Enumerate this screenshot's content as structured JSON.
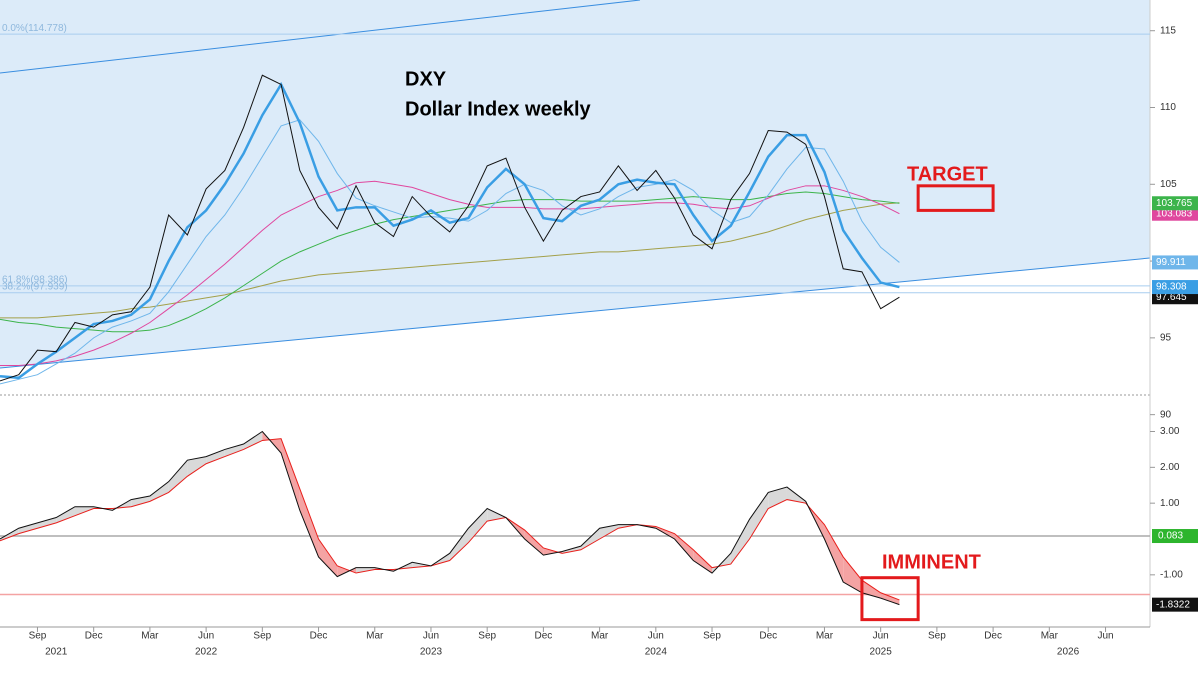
{
  "chart_data": [
    {
      "type": "line",
      "title": "DXY",
      "subtitle": "Dollar Index weekly",
      "x": [
        "2021-07",
        "2021-08",
        "2021-09",
        "2021-10",
        "2021-11",
        "2021-12",
        "2022-01",
        "2022-02",
        "2022-03",
        "2022-04",
        "2022-05",
        "2022-06",
        "2022-07",
        "2022-08",
        "2022-09",
        "2022-10",
        "2022-11",
        "2022-12",
        "2023-01",
        "2023-02",
        "2023-03",
        "2023-04",
        "2023-05",
        "2023-06",
        "2023-07",
        "2023-08",
        "2023-09",
        "2023-10",
        "2023-11",
        "2023-12",
        "2024-01",
        "2024-02",
        "2024-03",
        "2024-04",
        "2024-05",
        "2024-06",
        "2024-07",
        "2024-08",
        "2024-09",
        "2024-10",
        "2024-11",
        "2024-12",
        "2025-01",
        "2025-02",
        "2025-03",
        "2025-04",
        "2025-05",
        "2025-06",
        "2025-07"
      ],
      "xlim": [
        "2021-07",
        "2026-08"
      ],
      "ylim": [
        89,
        117
      ],
      "yticks": [
        90,
        95,
        100,
        105,
        110,
        115
      ],
      "series": [
        {
          "color": "#111111",
          "width": 1,
          "end_label": true,
          "values": [
            92.2,
            92.6,
            94.2,
            94.1,
            96.0,
            95.7,
            96.5,
            96.7,
            98.3,
            103.0,
            101.7,
            104.7,
            105.9,
            108.7,
            112.1,
            111.5,
            105.9,
            103.5,
            102.1,
            104.9,
            102.5,
            101.6,
            104.2,
            102.9,
            101.9,
            103.6,
            106.2,
            106.7,
            103.5,
            101.3,
            103.3,
            104.2,
            104.5,
            106.2,
            104.6,
            105.9,
            104.1,
            101.7,
            100.8,
            104.0,
            105.7,
            108.5,
            108.4,
            107.6,
            104.2,
            99.5,
            99.3,
            96.9,
            97.645
          ]
        },
        {
          "color": "#3a9ee4",
          "width": 2.5,
          "end_label": true,
          "values": [
            92.5,
            92.4,
            93.3,
            94.1,
            95.0,
            95.9,
            96.1,
            96.5,
            97.5,
            100.0,
            102.2,
            103.3,
            105.0,
            107.0,
            109.5,
            111.5,
            109.0,
            105.5,
            103.3,
            103.5,
            103.5,
            102.3,
            102.7,
            103.3,
            102.5,
            102.8,
            104.8,
            106.0,
            105.0,
            102.8,
            102.6,
            103.6,
            104.0,
            105.0,
            105.3,
            105.1,
            105.0,
            103.0,
            101.3,
            102.3,
            104.5,
            106.8,
            108.2,
            108.2,
            105.8,
            102.0,
            100.2,
            98.6,
            98.308
          ]
        },
        {
          "color": "#6fb6ea",
          "width": 1,
          "end_label": true,
          "values": [
            92.0,
            92.3,
            92.6,
            93.3,
            94.0,
            95.0,
            95.7,
            96.1,
            96.6,
            98.0,
            99.8,
            101.6,
            103.0,
            104.8,
            106.8,
            108.8,
            109.2,
            107.8,
            105.7,
            104.1,
            103.6,
            103.2,
            102.8,
            102.9,
            102.8,
            102.6,
            103.3,
            104.4,
            105.0,
            104.6,
            103.6,
            103.0,
            103.4,
            104.2,
            104.8,
            105.0,
            105.3,
            104.6,
            103.3,
            102.5,
            102.9,
            104.3,
            106.0,
            107.4,
            107.3,
            105.2,
            102.6,
            100.9,
            99.911
          ]
        },
        {
          "color": "#e0479e",
          "width": 1,
          "end_label": true,
          "values": [
            93.2,
            93.2,
            93.3,
            93.5,
            93.8,
            94.2,
            94.7,
            95.3,
            96.0,
            96.9,
            97.8,
            98.8,
            99.8,
            100.9,
            102.0,
            103.0,
            103.6,
            104.2,
            104.6,
            105.1,
            105.2,
            105.0,
            104.8,
            104.4,
            104.0,
            103.7,
            103.5,
            103.5,
            103.5,
            103.4,
            103.4,
            103.4,
            103.5,
            103.6,
            103.7,
            103.8,
            103.8,
            103.7,
            103.5,
            103.4,
            103.6,
            104.1,
            104.6,
            104.9,
            104.9,
            104.6,
            104.2,
            103.7,
            103.083
          ]
        },
        {
          "color": "#3cb44b",
          "width": 1,
          "end_label": true,
          "values": [
            96.2,
            96.0,
            95.9,
            95.7,
            95.6,
            95.5,
            95.4,
            95.4,
            95.5,
            95.8,
            96.3,
            96.9,
            97.6,
            98.4,
            99.2,
            100.0,
            100.6,
            101.1,
            101.6,
            102.0,
            102.4,
            102.7,
            102.9,
            103.1,
            103.3,
            103.5,
            103.7,
            103.9,
            104.0,
            104.0,
            104.0,
            103.9,
            103.9,
            103.9,
            103.9,
            104.0,
            104.1,
            104.2,
            104.1,
            104.0,
            104.0,
            104.2,
            104.4,
            104.5,
            104.4,
            104.2,
            104.0,
            103.9,
            103.765
          ]
        },
        {
          "color": "#a3a04a",
          "width": 1,
          "end_label": false,
          "values": [
            96.3,
            96.3,
            96.3,
            96.4,
            96.5,
            96.6,
            96.7,
            96.9,
            97.0,
            97.2,
            97.4,
            97.6,
            97.8,
            98.1,
            98.4,
            98.7,
            98.9,
            99.1,
            99.2,
            99.3,
            99.4,
            99.5,
            99.6,
            99.7,
            99.8,
            99.9,
            100.0,
            100.1,
            100.2,
            100.3,
            100.4,
            100.5,
            100.6,
            100.6,
            100.7,
            100.8,
            100.9,
            101.0,
            101.1,
            101.3,
            101.6,
            101.9,
            102.3,
            102.7,
            103.0,
            103.3,
            103.5,
            103.7,
            103.8
          ]
        }
      ],
      "hlines": [
        {
          "value": 114.778,
          "label": "0.0%(114.778)"
        },
        {
          "value": 98.386,
          "label": "61.8%(98.386)"
        },
        {
          "value": 97.939,
          "label": "38.2%(97.939)"
        }
      ],
      "annotation": "TARGET",
      "box": {
        "x": [
          "2025-08",
          "2025-12"
        ],
        "y": [
          103.3,
          104.9
        ]
      },
      "box_color": "#e31a1c"
    },
    {
      "type": "line",
      "x": [
        "2021-07",
        "2021-08",
        "2021-09",
        "2021-10",
        "2021-11",
        "2021-12",
        "2022-01",
        "2022-02",
        "2022-03",
        "2022-04",
        "2022-05",
        "2022-06",
        "2022-07",
        "2022-08",
        "2022-09",
        "2022-10",
        "2022-11",
        "2022-12",
        "2023-01",
        "2023-02",
        "2023-03",
        "2023-04",
        "2023-05",
        "2023-06",
        "2023-07",
        "2023-08",
        "2023-09",
        "2023-10",
        "2023-11",
        "2023-12",
        "2024-01",
        "2024-02",
        "2024-03",
        "2024-04",
        "2024-05",
        "2024-06",
        "2024-07",
        "2024-08",
        "2024-09",
        "2024-10",
        "2024-11",
        "2024-12",
        "2025-01",
        "2025-02",
        "2025-03",
        "2025-04",
        "2025-05",
        "2025-06",
        "2025-07"
      ],
      "xlim": [
        "2021-07",
        "2026-08"
      ],
      "xticks": [
        {
          "value": "2021-09",
          "label": "Sep"
        },
        {
          "value": "2021-12",
          "label": "Dec"
        },
        {
          "value": "2022-03",
          "label": "Mar"
        },
        {
          "value": "2022-06",
          "label": "Jun"
        },
        {
          "value": "2022-09",
          "label": "Sep"
        },
        {
          "value": "2022-12",
          "label": "Dec"
        },
        {
          "value": "2023-03",
          "label": "Mar"
        },
        {
          "value": "2023-06",
          "label": "Jun"
        },
        {
          "value": "2023-09",
          "label": "Sep"
        },
        {
          "value": "2023-12",
          "label": "Dec"
        },
        {
          "value": "2024-03",
          "label": "Mar"
        },
        {
          "value": "2024-06",
          "label": "Jun"
        },
        {
          "value": "2024-09",
          "label": "Sep"
        },
        {
          "value": "2024-12",
          "label": "Dec"
        },
        {
          "value": "2025-03",
          "label": "Mar"
        },
        {
          "value": "2025-06",
          "label": "Jun"
        },
        {
          "value": "2025-09",
          "label": "Sep"
        },
        {
          "value": "2025-12",
          "label": "Dec"
        },
        {
          "value": "2026-03",
          "label": "Mar"
        },
        {
          "value": "2026-06",
          "label": "Jun"
        }
      ],
      "year_ticks": [
        {
          "value": "2021-10",
          "label": "2021"
        },
        {
          "value": "2022-06",
          "label": "2022"
        },
        {
          "value": "2023-06",
          "label": "2023"
        },
        {
          "value": "2024-06",
          "label": "2024"
        },
        {
          "value": "2025-06",
          "label": "2025"
        },
        {
          "value": "2026-04",
          "label": "2026"
        }
      ],
      "ylim": [
        -2.4,
        3.6
      ],
      "yticks": [
        {
          "value": 3,
          "label": "3.00"
        },
        {
          "value": 2,
          "label": "2.00"
        },
        {
          "value": 1,
          "label": "1.00"
        },
        {
          "value": -1,
          "label": "-1.00"
        }
      ],
      "fill_colors": [
        "#d9d9d9",
        "#f4a3a3"
      ],
      "series": [
        {
          "color": "#111111",
          "width": 1,
          "end_label": true,
          "values": [
            0.0,
            0.3,
            0.45,
            0.6,
            0.9,
            0.9,
            0.8,
            1.1,
            1.2,
            1.6,
            2.2,
            2.3,
            2.5,
            2.65,
            3.0,
            2.4,
            0.8,
            -0.5,
            -1.05,
            -0.8,
            -0.8,
            -0.9,
            -0.65,
            -0.75,
            -0.4,
            0.3,
            0.85,
            0.6,
            0.0,
            -0.45,
            -0.35,
            -0.2,
            0.3,
            0.4,
            0.4,
            0.3,
            0.0,
            -0.6,
            -0.95,
            -0.4,
            0.55,
            1.3,
            1.45,
            1.05,
            0.0,
            -1.2,
            -1.5,
            -1.65,
            -1.8322
          ]
        },
        {
          "color": "#e8201c",
          "width": 1,
          "end_label": false,
          "values": [
            -0.05,
            0.15,
            0.3,
            0.45,
            0.65,
            0.85,
            0.85,
            0.9,
            1.05,
            1.3,
            1.75,
            2.1,
            2.3,
            2.5,
            2.75,
            2.8,
            1.4,
            0.0,
            -0.75,
            -0.95,
            -0.85,
            -0.85,
            -0.8,
            -0.75,
            -0.6,
            -0.1,
            0.5,
            0.6,
            0.25,
            -0.25,
            -0.4,
            -0.3,
            0.0,
            0.3,
            0.4,
            0.35,
            0.15,
            -0.3,
            -0.8,
            -0.7,
            0.0,
            0.85,
            1.1,
            1.0,
            0.4,
            -0.5,
            -1.15,
            -1.5,
            -1.7
          ]
        }
      ],
      "hlines": [
        {
          "value": 0.083,
          "color": "#aaaaaa",
          "tag_color": "#2db52d"
        },
        {
          "value": -1.55,
          "color": "#f4a3a3"
        }
      ],
      "annotation": "IMMINENT",
      "box": {
        "x": [
          "2025-05",
          "2025-08"
        ],
        "y": [
          -1.08,
          -2.25
        ]
      },
      "box_color": "#e31a1c"
    }
  ]
}
